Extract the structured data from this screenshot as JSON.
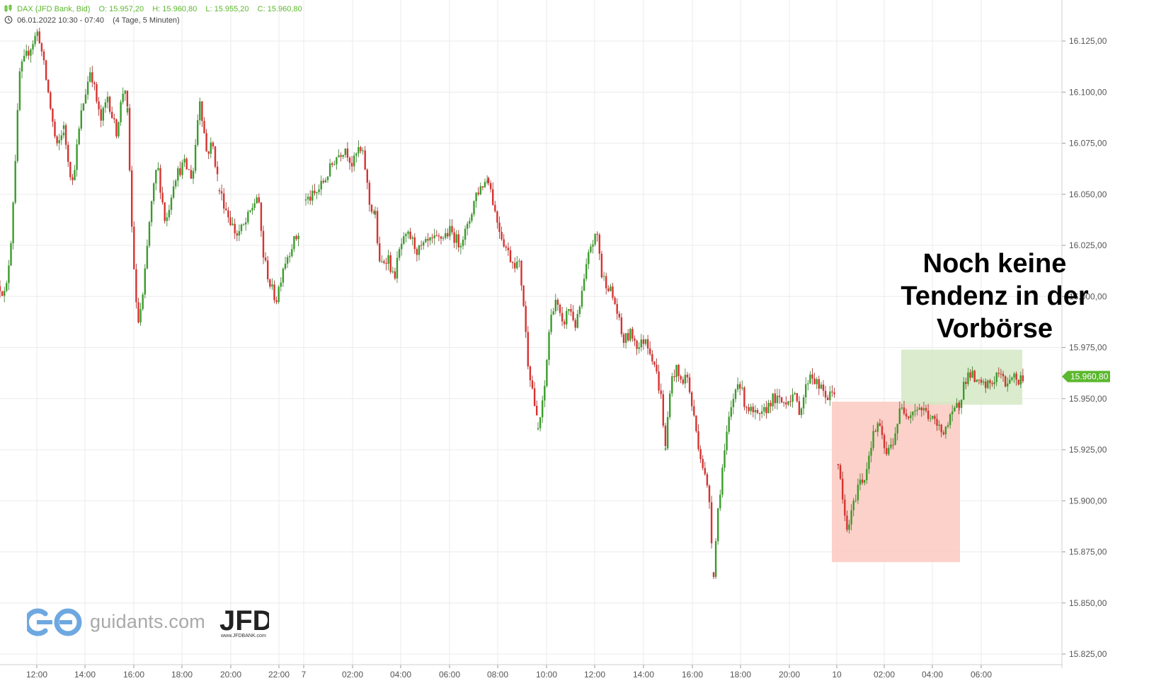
{
  "header": {
    "instrument": "DAX (JFD Bank, Bid)",
    "open": "O: 15.957,20",
    "high": "H: 15.960,80",
    "low": "L: 15.955,20",
    "close": "C: 15.960,80",
    "range": "06.01.2022 10:30 - 07:40",
    "period": "(4 Tage, 5 Minuten)",
    "ohlc_icon": "candles-icon",
    "time_icon": "clock-icon"
  },
  "annotation": {
    "line1": "Noch keine",
    "line2": "Tendenz in der",
    "line3": "Vorbörse"
  },
  "branding": {
    "site": "guidants.com",
    "logo": "JFD",
    "url": "www.JFDBANK.com"
  },
  "colors": {
    "up": "#3a9c2a",
    "down": "#d8322f",
    "price_tag": "#5cb82e",
    "red_zone": "#fcc9bf",
    "green_zone": "#d4e9c4",
    "grid": "#ebebeb",
    "axis_text": "#555555"
  },
  "chart_data": {
    "type": "candlestick",
    "y_axis": {
      "min": 15825,
      "max": 16140,
      "position": "right",
      "ticks": [
        "16.125,00",
        "16.100,00",
        "16.075,00",
        "16.050,00",
        "16.025,00",
        "16.000,00",
        "15.975,00",
        "15.950,00",
        "15.925,00",
        "15.900,00",
        "15.875,00",
        "15.850,00",
        "15.825,00"
      ]
    },
    "x_axis": {
      "ticks": [
        "12:00",
        "14:00",
        "16:00",
        "18:00",
        "20:00",
        "22:00",
        "7",
        "02:00",
        "04:00",
        "06:00",
        "08:00",
        "10:00",
        "12:00",
        "14:00",
        "16:00",
        "18:00",
        "20:00",
        "10",
        "02:00",
        "04:00",
        "06:00"
      ]
    },
    "last_price": 15960.8,
    "last_price_label": "15.960,80",
    "zones": [
      {
        "name": "red-zone",
        "y_top": 15948.5,
        "y_bottom": 15870,
        "x_from": "10 00:00",
        "x_to": "10 05:10"
      },
      {
        "name": "green-zone",
        "y_top": 15974,
        "y_bottom": 15947,
        "x_from": "10 02:40",
        "x_to": "10 07:40"
      }
    ],
    "segments": [
      {
        "from_x": 0,
        "to_x": 30,
        "path": [
          [
            16005,
            0
          ],
          [
            16000,
            8
          ],
          [
            16030,
            16
          ],
          [
            16110,
            28
          ],
          [
            16120,
            40
          ],
          [
            16130,
            54
          ],
          [
            16100,
            68
          ],
          [
            16072,
            80
          ],
          [
            16082,
            90
          ]
        ]
      },
      {
        "from_x": 90,
        "to_x": 180,
        "path": [
          [
            16082,
            90
          ],
          [
            16055,
            102
          ],
          [
            16090,
            115
          ],
          [
            16112,
            128
          ],
          [
            16085,
            142
          ],
          [
            16098,
            152
          ],
          [
            16080,
            164
          ],
          [
            16105,
            176
          ],
          [
            16090,
            180
          ]
        ]
      },
      {
        "from_x": 180,
        "to_x": 310,
        "path": [
          [
            16090,
            180
          ],
          [
            16035,
            186
          ],
          [
            15985,
            194
          ],
          [
            16000,
            202
          ],
          [
            16040,
            212
          ],
          [
            16065,
            222
          ],
          [
            16035,
            234
          ],
          [
            16058,
            246
          ],
          [
            16065,
            260
          ],
          [
            16058,
            272
          ],
          [
            16098,
            282
          ],
          [
            16070,
            292
          ],
          [
            16075,
            300
          ],
          [
            16052,
            310
          ]
        ]
      },
      {
        "from_x": 310,
        "to_x": 430,
        "path": [
          [
            16052,
            310
          ],
          [
            16040,
            322
          ],
          [
            16030,
            334
          ],
          [
            16035,
            346
          ],
          [
            16045,
            358
          ],
          [
            16050,
            364
          ],
          [
            16020,
            372
          ],
          [
            16005,
            382
          ],
          [
            15998,
            390
          ],
          [
            16015,
            400
          ],
          [
            16025,
            412
          ],
          [
            16032,
            424
          ]
        ]
      },
      {
        "from_x": 430,
        "to_x": 530,
        "path": [
          [
            16047,
            432
          ],
          [
            16050,
            446
          ],
          [
            16058,
            460
          ],
          [
            16068,
            474
          ],
          [
            16073,
            488
          ],
          [
            16064,
            498
          ],
          [
            16072,
            506
          ],
          [
            16068,
            514
          ],
          [
            16045,
            522
          ],
          [
            16040,
            530
          ]
        ]
      },
      {
        "from_x": 530,
        "to_x": 690,
        "path": [
          [
            16040,
            530
          ],
          [
            16015,
            536
          ],
          [
            16020,
            548
          ],
          [
            16008,
            556
          ],
          [
            16025,
            566
          ],
          [
            16030,
            578
          ],
          [
            16022,
            590
          ],
          [
            16026,
            604
          ],
          [
            16028,
            620
          ],
          [
            16032,
            636
          ],
          [
            16026,
            648
          ],
          [
            16033,
            660
          ],
          [
            16050,
            672
          ],
          [
            16055,
            682
          ],
          [
            16058,
            690
          ]
        ]
      },
      {
        "from_x": 690,
        "to_x": 760,
        "path": [
          [
            16058,
            690
          ],
          [
            16040,
            700
          ],
          [
            16028,
            710
          ],
          [
            16018,
            722
          ],
          [
            16015,
            734
          ],
          [
            15995,
            740
          ],
          [
            15970,
            745
          ],
          [
            15955,
            752
          ],
          [
            15935,
            760
          ]
        ]
      },
      {
        "from_x": 760,
        "to_x": 850,
        "path": [
          [
            15935,
            760
          ],
          [
            15950,
            768
          ],
          [
            15985,
            776
          ],
          [
            16000,
            784
          ],
          [
            15985,
            794
          ],
          [
            15995,
            804
          ],
          [
            15985,
            814
          ],
          [
            16005,
            824
          ],
          [
            16025,
            834
          ],
          [
            16030,
            844
          ],
          [
            16010,
            850
          ]
        ]
      },
      {
        "from_x": 850,
        "to_x": 940,
        "path": [
          [
            16010,
            850
          ],
          [
            16005,
            860
          ],
          [
            15995,
            870
          ],
          [
            15978,
            880
          ],
          [
            15982,
            892
          ],
          [
            15975,
            902
          ],
          [
            15980,
            912
          ],
          [
            15968,
            924
          ],
          [
            15950,
            934
          ],
          [
            15925,
            940
          ]
        ]
      },
      {
        "from_x": 940,
        "to_x": 1010,
        "path": [
          [
            15925,
            940
          ],
          [
            15955,
            946
          ],
          [
            15965,
            954
          ],
          [
            15958,
            962
          ],
          [
            15962,
            970
          ],
          [
            15945,
            978
          ],
          [
            15925,
            988
          ],
          [
            15915,
            994
          ],
          [
            15900,
            1002
          ],
          [
            15865,
            1008
          ]
        ]
      },
      {
        "from_x": 1010,
        "to_x": 1180,
        "path": [
          [
            15865,
            1008
          ],
          [
            15895,
            1014
          ],
          [
            15915,
            1020
          ],
          [
            15940,
            1030
          ],
          [
            15960,
            1042
          ],
          [
            15948,
            1052
          ],
          [
            15943,
            1062
          ],
          [
            15940,
            1074
          ],
          [
            15950,
            1090
          ],
          [
            15948,
            1106
          ],
          [
            15952,
            1120
          ],
          [
            15944,
            1130
          ],
          [
            15963,
            1144
          ],
          [
            15955,
            1158
          ],
          [
            15950,
            1170
          ],
          [
            15955,
            1180
          ]
        ]
      },
      {
        "from_x": 1183,
        "to_x": 1355,
        "path": [
          [
            15918,
            1184
          ],
          [
            15900,
            1190
          ],
          [
            15885,
            1196
          ],
          [
            15895,
            1204
          ],
          [
            15908,
            1212
          ],
          [
            15912,
            1222
          ],
          [
            15928,
            1230
          ],
          [
            15938,
            1240
          ],
          [
            15922,
            1252
          ],
          [
            15930,
            1262
          ],
          [
            15945,
            1272
          ],
          [
            15943,
            1284
          ],
          [
            15946,
            1296
          ],
          [
            15944,
            1306
          ],
          [
            15940,
            1316
          ],
          [
            15934,
            1330
          ],
          [
            15938,
            1340
          ],
          [
            15945,
            1350
          ],
          [
            15948,
            1355
          ]
        ]
      },
      {
        "from_x": 1355,
        "to_x": 1445,
        "path": [
          [
            15948,
            1355
          ],
          [
            15958,
            1362
          ],
          [
            15963,
            1370
          ],
          [
            15957,
            1380
          ],
          [
            15956,
            1392
          ],
          [
            15958,
            1402
          ],
          [
            15963,
            1410
          ],
          [
            15957,
            1420
          ],
          [
            15962,
            1430
          ],
          [
            15958,
            1438
          ],
          [
            15961,
            1445
          ]
        ]
      }
    ]
  }
}
